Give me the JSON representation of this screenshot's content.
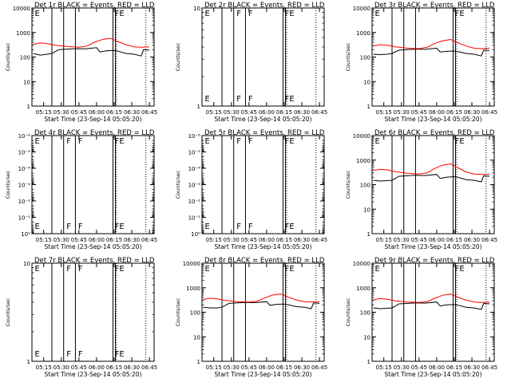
{
  "chart_data": [
    {
      "type": "line",
      "title": "Det 1r BLACK = Events, RED = LLD",
      "xlabel": "Start Time (23-Sep-14 05:05:20)",
      "ylabel": "Counts/sec",
      "yscale": "log",
      "ylim": [
        1,
        10000
      ],
      "yticks": [
        1,
        10,
        100,
        1000,
        10000
      ],
      "ytick_labels": [
        "1",
        "10",
        "100",
        "1000",
        "10000"
      ],
      "xlim": [
        "05:05",
        "06:49"
      ],
      "xticks": [
        "05:15",
        "05:30",
        "05:45",
        "06:00",
        "06:15",
        "06:30",
        "06:45"
      ],
      "solid_lines": [
        "05:22",
        "05:32",
        "05:42",
        "06:14",
        "06:16"
      ],
      "dotted_lines": [
        "06:17",
        "06:42"
      ],
      "flags": [
        {
          "text": "E",
          "x": "05:06"
        },
        {
          "text": "F",
          "x": "06:14"
        },
        {
          "text": "E",
          "x": "06:18"
        }
      ],
      "series": [
        {
          "name": "BLACK = Events",
          "color": "#000000",
          "x": [
            "05:06",
            "05:12",
            "05:18",
            "05:22",
            "05:28",
            "05:35",
            "05:42",
            "05:50",
            "06:00",
            "06:03",
            "06:08",
            "06:14",
            "06:17",
            "06:25",
            "06:32",
            "06:38",
            "06:40",
            "06:45"
          ],
          "values": [
            140,
            120,
            130,
            140,
            200,
            210,
            220,
            215,
            240,
            160,
            180,
            185,
            180,
            140,
            130,
            110,
            200,
            190
          ]
        },
        {
          "name": "RED = LLD",
          "color": "#ff0000",
          "x": [
            "05:06",
            "05:12",
            "05:18",
            "05:25",
            "05:35",
            "05:45",
            "05:52",
            "05:58",
            "06:05",
            "06:12",
            "06:17",
            "06:25",
            "06:32",
            "06:38",
            "06:45"
          ],
          "values": [
            330,
            380,
            350,
            300,
            270,
            250,
            280,
            400,
            520,
            580,
            450,
            320,
            260,
            250,
            260
          ]
        }
      ]
    },
    {
      "type": "line",
      "title": "Det 2r BLACK = Events, RED = LLD",
      "xlabel": "Start Time (23-Sep-14 05:05:20)",
      "ylabel": "Counts/sec",
      "yscale": "log",
      "ylim": [
        1,
        10
      ],
      "yticks": [
        1,
        10
      ],
      "ytick_labels": [
        "1",
        "10"
      ],
      "xlim": [
        "05:05",
        "06:49"
      ],
      "xticks": [
        "05:15",
        "05:30",
        "05:45",
        "06:00",
        "06:15",
        "06:30",
        "06:45"
      ],
      "solid_lines": [
        "05:22",
        "05:32",
        "05:42",
        "06:14",
        "06:16"
      ],
      "dotted_lines": [
        "06:17",
        "06:42"
      ],
      "flags": [
        {
          "text": "E",
          "x": "05:06"
        },
        {
          "text": "F",
          "x": "05:33"
        },
        {
          "text": "F",
          "x": "05:43"
        },
        {
          "text": "F",
          "x": "06:14"
        },
        {
          "text": "E",
          "x": "06:18"
        }
      ],
      "series": []
    },
    {
      "type": "line",
      "title": "Det 3r BLACK = Events, RED = LLD",
      "xlabel": "Start Time (23-Sep-14 05:05:20)",
      "ylabel": "Counts/sec",
      "yscale": "log",
      "ylim": [
        1,
        10000
      ],
      "yticks": [
        1,
        10,
        100,
        1000,
        10000
      ],
      "ytick_labels": [
        "1",
        "10",
        "100",
        "1000",
        "10000"
      ],
      "xlim": [
        "05:05",
        "06:49"
      ],
      "xticks": [
        "05:15",
        "05:30",
        "05:45",
        "06:00",
        "06:15",
        "06:30",
        "06:45"
      ],
      "solid_lines": [
        "05:22",
        "05:32",
        "05:42",
        "06:14",
        "06:16"
      ],
      "dotted_lines": [
        "06:17",
        "06:42"
      ],
      "flags": [
        {
          "text": "E",
          "x": "05:06"
        },
        {
          "text": "F",
          "x": "06:14"
        },
        {
          "text": "E",
          "x": "06:18"
        }
      ],
      "series": [
        {
          "name": "BLACK = Events",
          "color": "#000000",
          "x": [
            "05:06",
            "05:12",
            "05:18",
            "05:22",
            "05:28",
            "05:35",
            "05:42",
            "05:50",
            "06:00",
            "06:03",
            "06:08",
            "06:14",
            "06:17",
            "06:25",
            "06:32",
            "06:38",
            "06:40",
            "06:45"
          ],
          "values": [
            130,
            125,
            130,
            140,
            190,
            200,
            210,
            205,
            230,
            160,
            170,
            175,
            170,
            140,
            130,
            110,
            190,
            185
          ]
        },
        {
          "name": "RED = LLD",
          "color": "#ff0000",
          "x": [
            "05:06",
            "05:12",
            "05:18",
            "05:25",
            "05:35",
            "05:45",
            "05:52",
            "05:58",
            "06:05",
            "06:12",
            "06:17",
            "06:25",
            "06:32",
            "06:38",
            "06:45"
          ],
          "values": [
            280,
            320,
            300,
            260,
            230,
            220,
            250,
            350,
            460,
            520,
            400,
            280,
            230,
            220,
            230
          ]
        }
      ]
    },
    {
      "type": "line",
      "title": "Det 4r BLACK = Events, RED = LLD",
      "xlabel": "Start Time (23-Sep-14 05:05:20)",
      "ylabel": "Counts/sec",
      "yscale": "log",
      "ylim": [
        1,
        1e-06
      ],
      "yticks": [
        1,
        0.1,
        0.01,
        0.001,
        0.0001,
        1e-05,
        1e-06
      ],
      "ytick_labels": [
        "10⁰",
        "10⁻¹",
        "10⁻²",
        "10⁻³",
        "10⁻⁴",
        "10⁻⁵",
        "10⁻⁶"
      ],
      "xlim": [
        "05:05",
        "06:49"
      ],
      "xticks": [
        "05:15",
        "05:30",
        "05:45",
        "06:00",
        "06:15",
        "06:30",
        "06:45"
      ],
      "solid_lines": [
        "05:22",
        "05:32",
        "05:42",
        "06:14",
        "06:16"
      ],
      "dotted_lines": [
        "06:17",
        "06:42"
      ],
      "flags": [
        {
          "text": "E",
          "x": "05:06"
        },
        {
          "text": "F",
          "x": "05:33"
        },
        {
          "text": "F",
          "x": "05:43"
        },
        {
          "text": "F",
          "x": "06:14"
        },
        {
          "text": "E",
          "x": "06:18"
        }
      ],
      "series": []
    },
    {
      "type": "line",
      "title": "Det 5r BLACK = Events, RED = LLD",
      "xlabel": "Start Time (23-Sep-14 05:05:20)",
      "ylabel": "Counts/sec",
      "yscale": "log",
      "ylim": [
        1,
        1e-06
      ],
      "yticks": [
        1,
        0.1,
        0.01,
        0.001,
        0.0001,
        1e-05,
        1e-06
      ],
      "ytick_labels": [
        "10⁰",
        "10⁻¹",
        "10⁻²",
        "10⁻³",
        "10⁻⁴",
        "10⁻⁵",
        "10⁻⁶"
      ],
      "xlim": [
        "05:05",
        "06:49"
      ],
      "xticks": [
        "05:15",
        "05:30",
        "05:45",
        "06:00",
        "06:15",
        "06:30",
        "06:45"
      ],
      "solid_lines": [
        "05:22",
        "05:32",
        "05:42",
        "06:14",
        "06:16"
      ],
      "dotted_lines": [
        "06:17",
        "06:42"
      ],
      "flags": [
        {
          "text": "E",
          "x": "05:06"
        },
        {
          "text": "F",
          "x": "05:33"
        },
        {
          "text": "F",
          "x": "05:43"
        },
        {
          "text": "F",
          "x": "06:14"
        },
        {
          "text": "E",
          "x": "06:18"
        }
      ],
      "series": []
    },
    {
      "type": "line",
      "title": "Det 6r BLACK = Events, RED = LLD",
      "xlabel": "Start Time (23-Sep-14 05:05:20)",
      "ylabel": "Counts/sec",
      "yscale": "log",
      "ylim": [
        1,
        10000
      ],
      "yticks": [
        1,
        10,
        100,
        1000,
        10000
      ],
      "ytick_labels": [
        "1",
        "10",
        "100",
        "1000",
        "10000"
      ],
      "xlim": [
        "05:05",
        "06:49"
      ],
      "xticks": [
        "05:15",
        "05:30",
        "05:45",
        "06:00",
        "06:15",
        "06:30",
        "06:45"
      ],
      "solid_lines": [
        "05:22",
        "05:32",
        "05:42",
        "06:14",
        "06:16"
      ],
      "dotted_lines": [
        "06:17",
        "06:42"
      ],
      "flags": [
        {
          "text": "E",
          "x": "05:06"
        },
        {
          "text": "F",
          "x": "06:14"
        },
        {
          "text": "E",
          "x": "06:18"
        }
      ],
      "series": [
        {
          "name": "BLACK = Events",
          "color": "#000000",
          "x": [
            "05:06",
            "05:12",
            "05:18",
            "05:22",
            "05:28",
            "05:35",
            "05:42",
            "05:50",
            "06:00",
            "06:03",
            "06:08",
            "06:14",
            "06:17",
            "06:25",
            "06:32",
            "06:38",
            "06:40",
            "06:45"
          ],
          "values": [
            150,
            140,
            145,
            150,
            220,
            230,
            240,
            235,
            260,
            180,
            200,
            210,
            205,
            160,
            150,
            130,
            230,
            220
          ]
        },
        {
          "name": "RED = LLD",
          "color": "#ff0000",
          "x": [
            "05:06",
            "05:12",
            "05:18",
            "05:25",
            "05:35",
            "05:45",
            "05:52",
            "05:58",
            "06:05",
            "06:12",
            "06:17",
            "06:25",
            "06:32",
            "06:38",
            "06:45"
          ],
          "values": [
            380,
            420,
            400,
            340,
            290,
            270,
            300,
            450,
            620,
            700,
            520,
            330,
            270,
            260,
            270
          ]
        }
      ]
    },
    {
      "type": "line",
      "title": "Det 7r BLACK = Events, RED = LLD",
      "xlabel": "Start Time (23-Sep-14 05:05:20)",
      "ylabel": "Counts/sec",
      "yscale": "log",
      "ylim": [
        1,
        10
      ],
      "yticks": [
        1,
        10
      ],
      "ytick_labels": [
        "1",
        "10"
      ],
      "xlim": [
        "05:05",
        "06:49"
      ],
      "xticks": [
        "05:15",
        "05:30",
        "05:45",
        "06:00",
        "06:15",
        "06:30",
        "06:45"
      ],
      "solid_lines": [
        "05:22",
        "05:32",
        "05:42",
        "06:14",
        "06:16"
      ],
      "dotted_lines": [
        "06:17",
        "06:42"
      ],
      "flags": [
        {
          "text": "E",
          "x": "05:06"
        },
        {
          "text": "F",
          "x": "05:33"
        },
        {
          "text": "F",
          "x": "05:43"
        },
        {
          "text": "F",
          "x": "06:14"
        },
        {
          "text": "E",
          "x": "06:18"
        }
      ],
      "series": []
    },
    {
      "type": "line",
      "title": "Det 8r BLACK = Events, RED = LLD",
      "xlabel": "Start Time (23-Sep-14 05:05:20)",
      "ylabel": "Counts/sec",
      "yscale": "log",
      "ylim": [
        1,
        10000
      ],
      "yticks": [
        1,
        10,
        100,
        1000,
        10000
      ],
      "ytick_labels": [
        "1",
        "10",
        "100",
        "1000",
        "10000"
      ],
      "xlim": [
        "05:05",
        "06:49"
      ],
      "xticks": [
        "05:15",
        "05:30",
        "05:45",
        "06:00",
        "06:15",
        "06:30",
        "06:45"
      ],
      "solid_lines": [
        "05:22",
        "05:32",
        "05:42",
        "06:14",
        "06:16"
      ],
      "dotted_lines": [
        "06:17",
        "06:42"
      ],
      "flags": [
        {
          "text": "E",
          "x": "05:06"
        },
        {
          "text": "F",
          "x": "06:14"
        },
        {
          "text": "E",
          "x": "06:18"
        }
      ],
      "series": [
        {
          "name": "BLACK = Events",
          "color": "#000000",
          "x": [
            "05:06",
            "05:12",
            "05:18",
            "05:22",
            "05:28",
            "05:35",
            "05:42",
            "05:50",
            "06:00",
            "06:03",
            "06:08",
            "06:14",
            "06:17",
            "06:25",
            "06:32",
            "06:38",
            "06:40",
            "06:45"
          ],
          "values": [
            160,
            150,
            150,
            160,
            230,
            240,
            250,
            245,
            270,
            190,
            210,
            215,
            210,
            170,
            160,
            140,
            240,
            230
          ]
        },
        {
          "name": "RED = LLD",
          "color": "#ff0000",
          "x": [
            "05:06",
            "05:12",
            "05:18",
            "05:25",
            "05:35",
            "05:45",
            "05:52",
            "05:58",
            "06:05",
            "06:12",
            "06:17",
            "06:25",
            "06:32",
            "06:38",
            "06:45"
          ],
          "values": [
            330,
            370,
            350,
            300,
            270,
            260,
            280,
            380,
            500,
            560,
            440,
            320,
            270,
            260,
            270
          ]
        }
      ]
    },
    {
      "type": "line",
      "title": "Det 9r BLACK = Events, RED = LLD",
      "xlabel": "Start Time (23-Sep-14 05:05:20)",
      "ylabel": "Counts/sec",
      "yscale": "log",
      "ylim": [
        1,
        10000
      ],
      "yticks": [
        1,
        10,
        100,
        1000,
        10000
      ],
      "ytick_labels": [
        "1",
        "10",
        "100",
        "1000",
        "10000"
      ],
      "xlim": [
        "05:05",
        "06:49"
      ],
      "xticks": [
        "05:15",
        "05:30",
        "05:45",
        "06:00",
        "06:15",
        "06:30",
        "06:45"
      ],
      "solid_lines": [
        "05:22",
        "05:32",
        "05:42",
        "06:14",
        "06:16"
      ],
      "dotted_lines": [
        "06:17",
        "06:42"
      ],
      "flags": [
        {
          "text": "E",
          "x": "05:06"
        },
        {
          "text": "F",
          "x": "06:14"
        },
        {
          "text": "E",
          "x": "06:18"
        }
      ],
      "series": [
        {
          "name": "BLACK = Events",
          "color": "#000000",
          "x": [
            "05:06",
            "05:12",
            "05:18",
            "05:22",
            "05:28",
            "05:35",
            "05:42",
            "05:50",
            "06:00",
            "06:03",
            "06:08",
            "06:14",
            "06:17",
            "06:25",
            "06:32",
            "06:38",
            "06:40",
            "06:45"
          ],
          "values": [
            150,
            140,
            145,
            150,
            220,
            230,
            240,
            235,
            260,
            180,
            200,
            205,
            200,
            160,
            150,
            130,
            230,
            220
          ]
        },
        {
          "name": "RED = LLD",
          "color": "#ff0000",
          "x": [
            "05:06",
            "05:12",
            "05:18",
            "05:25",
            "05:35",
            "05:45",
            "05:52",
            "05:58",
            "06:05",
            "06:12",
            "06:17",
            "06:25",
            "06:32",
            "06:38",
            "06:45"
          ],
          "values": [
            320,
            360,
            340,
            290,
            260,
            250,
            270,
            370,
            490,
            550,
            430,
            310,
            260,
            250,
            260
          ]
        }
      ]
    }
  ]
}
